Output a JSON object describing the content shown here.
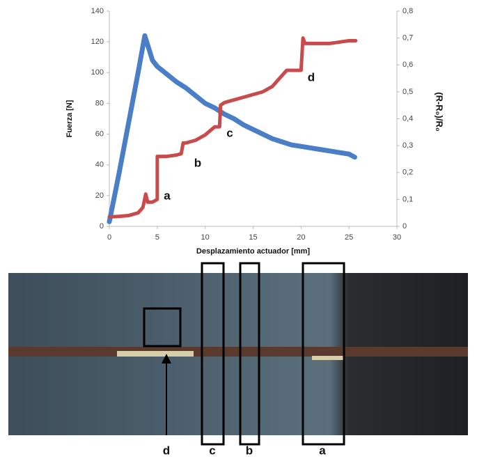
{
  "chart_data": {
    "type": "line",
    "xlabel": "Desplazamiento actuador [mm]",
    "ylabel": "Fuerza [N]",
    "y2label": "(R-R₀)/R₀",
    "xlim": [
      0,
      30
    ],
    "xticks": [
      0,
      5,
      10,
      15,
      20,
      25,
      30
    ],
    "ylim": [
      0,
      140
    ],
    "yticks": [
      0,
      20,
      40,
      60,
      80,
      100,
      120,
      140
    ],
    "y2lim": [
      0,
      0.8
    ],
    "y2ticks": [
      0,
      {
        "value": 0.1,
        "label": "0,1"
      },
      {
        "value": 0.2,
        "label": "0,2"
      },
      {
        "value": 0.3,
        "label": "0,3"
      },
      {
        "value": 0.4,
        "label": "0,4"
      },
      {
        "value": 0.5,
        "label": "0,5"
      },
      {
        "value": 0.6,
        "label": "0,6"
      },
      {
        "value": 0.7,
        "label": "0,7"
      },
      {
        "value": 0.8,
        "label": "0,8"
      }
    ],
    "grid": false,
    "series": [
      {
        "color": "#4a7fc8",
        "x": [
          0,
          1,
          2,
          3,
          3.7,
          4,
          4.5,
          5,
          6,
          7,
          8,
          9,
          10,
          11,
          12,
          13,
          14,
          15,
          16,
          17,
          18,
          19,
          20,
          21,
          22,
          23,
          24,
          25,
          25.6
        ],
        "values": [
          3,
          34,
          67,
          100,
          124,
          118,
          108,
          104,
          99,
          94,
          90,
          85,
          80,
          77,
          73,
          70,
          66,
          63,
          60,
          57,
          55,
          53,
          52,
          51,
          50,
          49,
          48,
          47,
          45
        ]
      },
      {
        "color": "#c84a4a",
        "axis": "y2",
        "x": [
          0,
          1,
          2,
          3,
          3.5,
          3.8,
          4,
          4.5,
          5,
          5,
          6,
          7,
          7.5,
          7.7,
          8,
          9,
          9.5,
          10,
          11,
          11.5,
          11.6,
          12,
          13,
          14,
          15,
          16,
          17,
          17.5,
          18,
          18.5,
          19,
          20,
          20.2,
          20.4,
          21,
          22,
          23,
          24,
          25,
          25.7
        ],
        "values": [
          0.035,
          0.037,
          0.04,
          0.05,
          0.07,
          0.12,
          0.09,
          0.09,
          0.1,
          0.26,
          0.26,
          0.265,
          0.27,
          0.31,
          0.31,
          0.32,
          0.33,
          0.34,
          0.37,
          0.37,
          0.45,
          0.46,
          0.47,
          0.48,
          0.49,
          0.5,
          0.52,
          0.54,
          0.56,
          0.58,
          0.58,
          0.58,
          0.7,
          0.68,
          0.68,
          0.68,
          0.68,
          0.685,
          0.69,
          0.69
        ]
      }
    ],
    "annotations": [
      "a",
      "b",
      "c",
      "d"
    ]
  },
  "photo": {
    "labels": [
      "d",
      "c",
      "b",
      "a"
    ]
  }
}
